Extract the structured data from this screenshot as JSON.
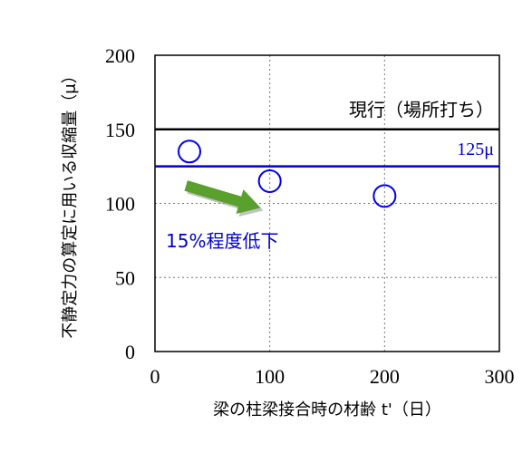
{
  "chart_data": {
    "type": "scatter",
    "xlabel": "梁の柱梁接合時の材齢 t'（日）",
    "ylabel": "不静定力の算定に用いる収縮量（μ）",
    "xlim": [
      0,
      300
    ],
    "ylim": [
      0,
      200
    ],
    "x_ticks": [
      "0",
      "100",
      "200",
      "300"
    ],
    "y_ticks": [
      "0",
      "50",
      "100",
      "150",
      "200"
    ],
    "x_tick_values": [
      0,
      100,
      200,
      300
    ],
    "y_tick_values": [
      0,
      50,
      100,
      150,
      200
    ],
    "grid": "dotted",
    "points": [
      {
        "x": 30,
        "y": 135
      },
      {
        "x": 100,
        "y": 115
      },
      {
        "x": 200,
        "y": 105
      }
    ],
    "point_color": "#0000ee",
    "reference_lines": [
      {
        "y": 150,
        "label": "現行（場所打ち）",
        "color": "#000000"
      },
      {
        "y": 125,
        "label": "125μ",
        "color": "#0000cc"
      }
    ],
    "annotation": {
      "text": "15%程度低下",
      "color": "#0000cc",
      "arrow_color": "#5aa02c",
      "arrow_from": {
        "x": 27,
        "y": 112
      },
      "arrow_to": {
        "x": 92,
        "y": 97
      }
    }
  }
}
